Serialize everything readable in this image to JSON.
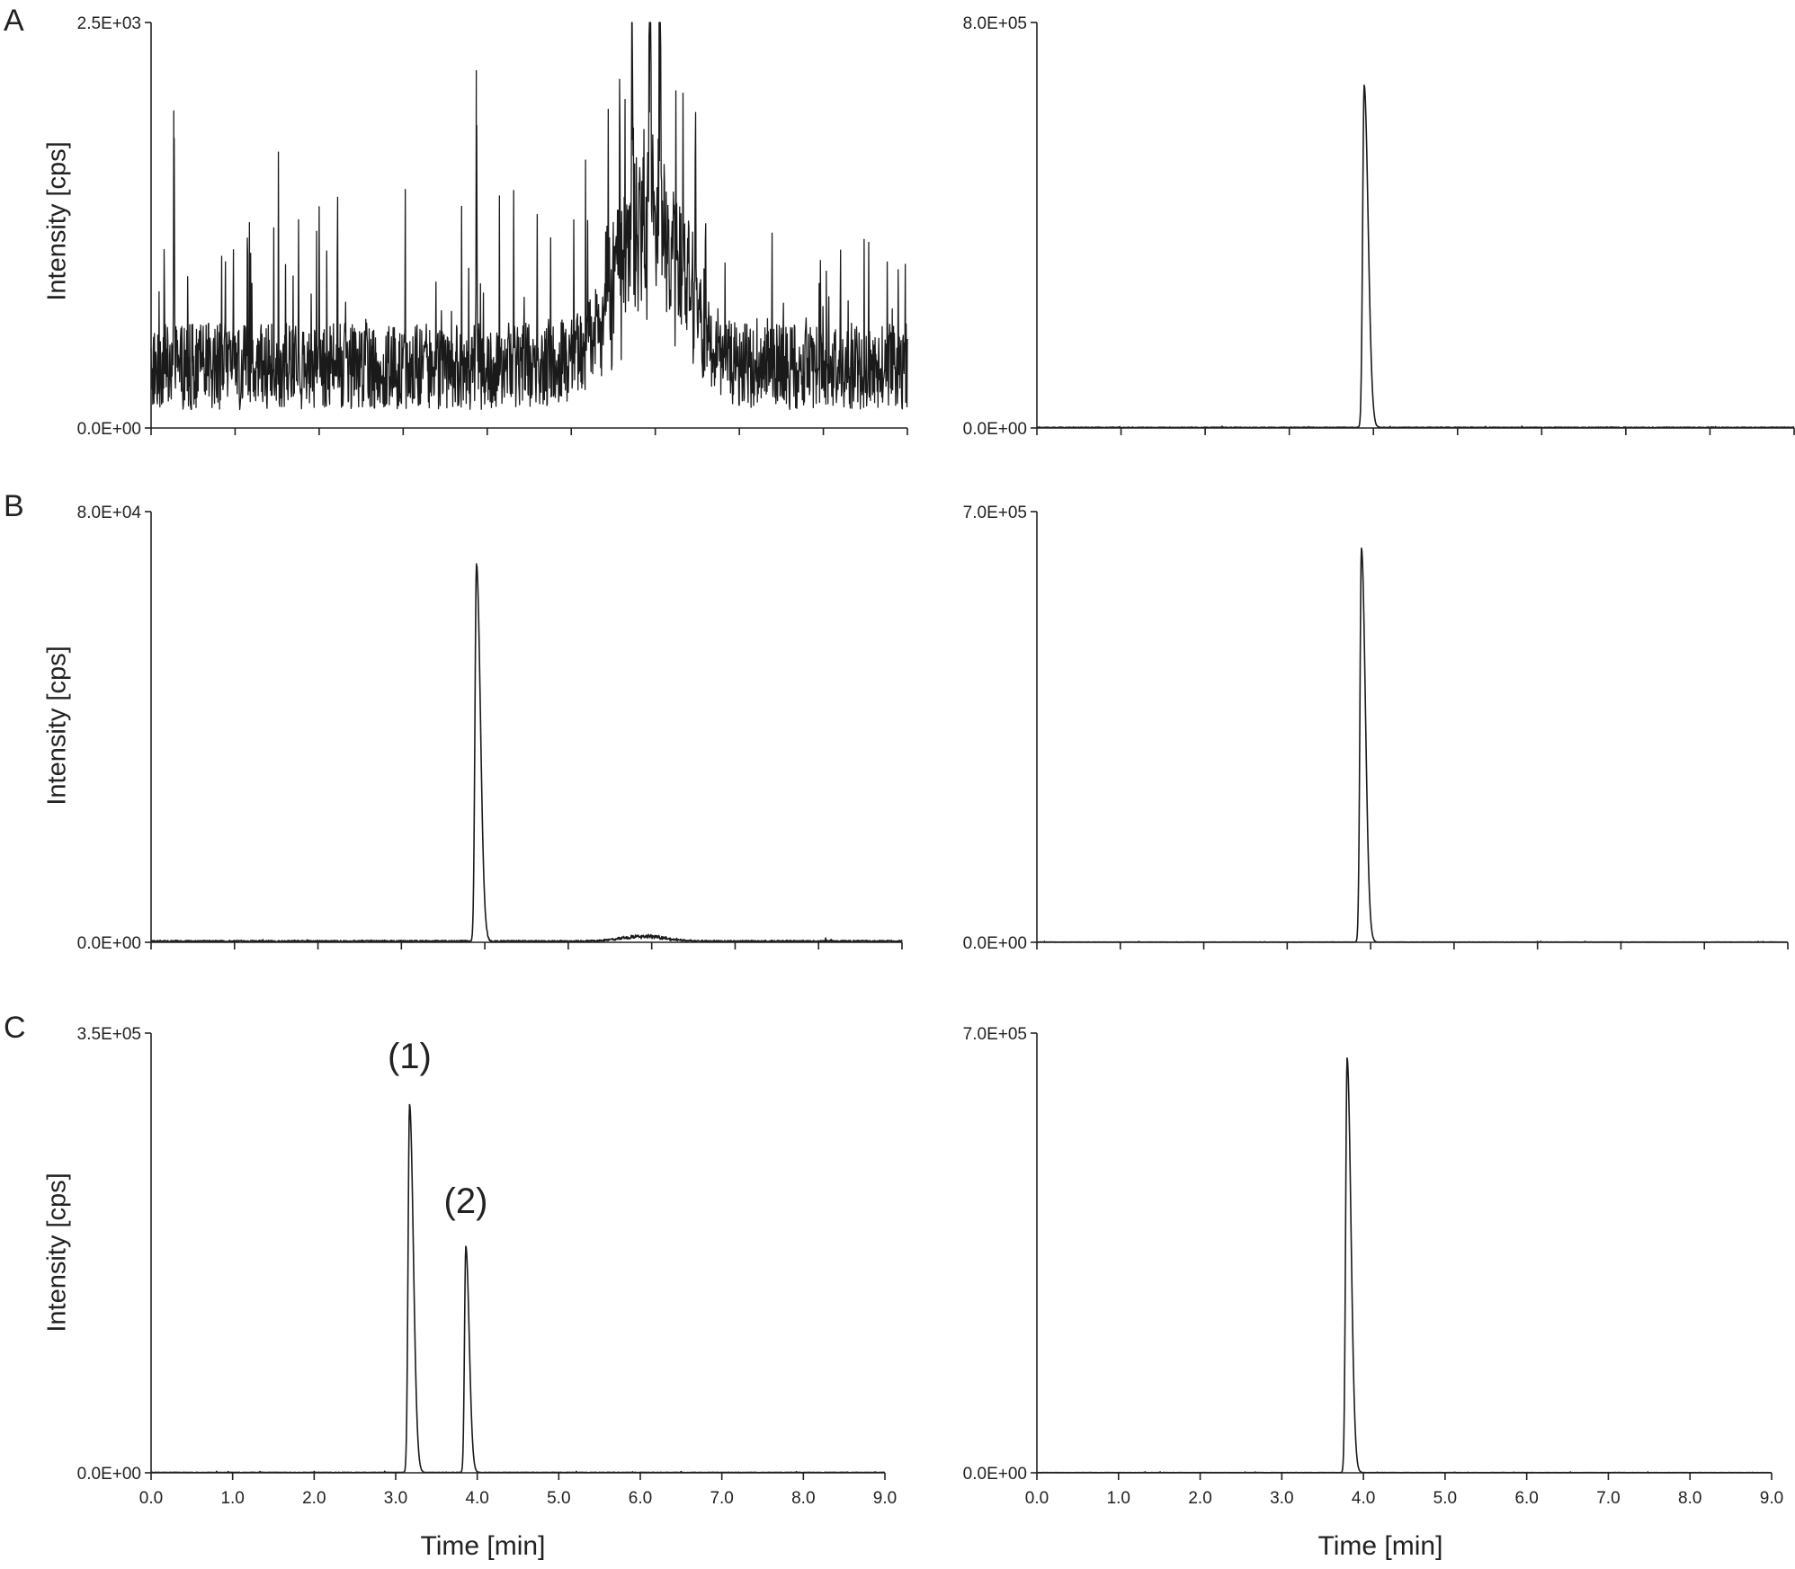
{
  "figure": {
    "panel_letters": [
      "A",
      "B",
      "C"
    ],
    "ylabel": "Intensity [cps]",
    "xlabel": "Time [min]",
    "line_color": "#1a1a1a"
  },
  "chart_data": [
    {
      "id": "A-left",
      "row": "A",
      "col": "left",
      "type": "line",
      "xlim": [
        0,
        9
      ],
      "ylim": [
        0,
        2500
      ],
      "yticks": [
        "0.0E+00",
        "2.5E+03"
      ],
      "xtick_labels": [],
      "noise": {
        "type": "noisy-baseline",
        "level": 380,
        "spread": 1100,
        "hump_center": 5.95,
        "hump_width": 0.55,
        "hump_height": 900
      },
      "peaks": [
        {
          "x": 0.27,
          "y": 1400,
          "w": 0.003
        },
        {
          "x": 3.87,
          "y": 1700,
          "w": 0.003
        },
        {
          "x": 5.93,
          "y": 1950,
          "w": 0.006
        },
        {
          "x": 5.72,
          "y": 1780,
          "w": 0.004
        },
        {
          "x": 6.05,
          "y": 1650,
          "w": 0.005
        }
      ],
      "annotations": []
    },
    {
      "id": "A-right",
      "row": "A",
      "col": "right",
      "type": "line",
      "xlim": [
        0,
        9
      ],
      "ylim": [
        0,
        800000
      ],
      "yticks": [
        "0.0E+00",
        "8.0E+05"
      ],
      "xtick_labels": [],
      "noise": {
        "type": "flat",
        "level": 1500,
        "spread": 2500
      },
      "peaks": [
        {
          "x": 3.89,
          "y": 675000,
          "w": 0.018
        }
      ],
      "annotations": []
    },
    {
      "id": "B-left",
      "row": "B",
      "col": "left",
      "type": "line",
      "xlim": [
        0,
        9
      ],
      "ylim": [
        0,
        80000
      ],
      "yticks": [
        "0.0E+00",
        "8.0E+04"
      ],
      "xtick_labels": [],
      "noise": {
        "type": "flat",
        "level": 300,
        "spread": 600,
        "hump_center": 5.9,
        "hump_width": 0.35,
        "hump_height": 900
      },
      "peaks": [
        {
          "x": 3.9,
          "y": 70000,
          "w": 0.018
        }
      ],
      "annotations": []
    },
    {
      "id": "B-right",
      "row": "B",
      "col": "right",
      "type": "line",
      "xlim": [
        0,
        9
      ],
      "ylim": [
        0,
        700000
      ],
      "yticks": [
        "0.0E+00",
        "7.0E+05"
      ],
      "xtick_labels": [],
      "noise": {
        "type": "flat",
        "level": 500,
        "spread": 1200
      },
      "peaks": [
        {
          "x": 3.89,
          "y": 640000,
          "w": 0.018
        }
      ],
      "annotations": []
    },
    {
      "id": "C-left",
      "row": "C",
      "col": "left",
      "type": "line",
      "xlim": [
        0,
        9
      ],
      "ylim": [
        0,
        350000
      ],
      "yticks": [
        "0.0E+00",
        "3.5E+05"
      ],
      "xtick_labels": [
        "0.0",
        "1.0",
        "2.0",
        "3.0",
        "4.0",
        "5.0",
        "6.0",
        "7.0",
        "8.0",
        "9.0"
      ],
      "noise": {
        "type": "flat",
        "level": 400,
        "spread": 900
      },
      "peaks": [
        {
          "x": 3.17,
          "y": 293000,
          "w": 0.018
        },
        {
          "x": 3.86,
          "y": 180000,
          "w": 0.016
        }
      ],
      "annotations": [
        {
          "text": "(1)",
          "x": 3.17,
          "y": 322000
        },
        {
          "text": "(2)",
          "x": 3.86,
          "y": 207000
        }
      ]
    },
    {
      "id": "C-right",
      "row": "C",
      "col": "right",
      "type": "line",
      "xlim": [
        0,
        9
      ],
      "ylim": [
        0,
        700000
      ],
      "yticks": [
        "0.0E+00",
        "7.0E+05"
      ],
      "xtick_labels": [
        "0.0",
        "1.0",
        "2.0",
        "3.0",
        "4.0",
        "5.0",
        "6.0",
        "7.0",
        "8.0",
        "9.0"
      ],
      "noise": {
        "type": "flat",
        "level": 500,
        "spread": 1200
      },
      "peaks": [
        {
          "x": 3.8,
          "y": 660000,
          "w": 0.018
        }
      ],
      "annotations": []
    }
  ]
}
